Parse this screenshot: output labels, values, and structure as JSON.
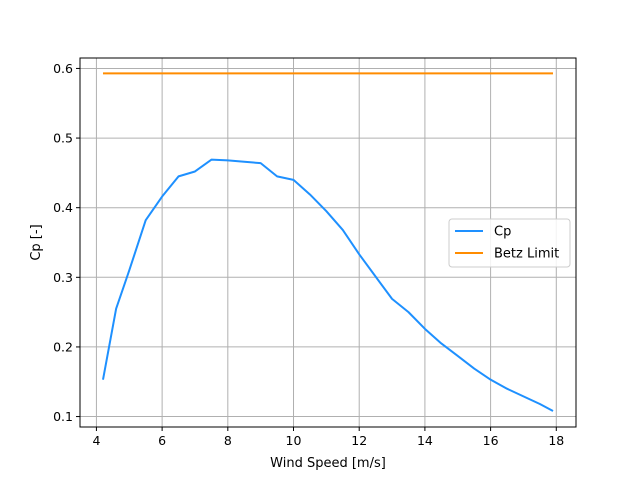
{
  "chart_data": {
    "type": "line",
    "title": "",
    "xlabel": "Wind Speed [m/s]",
    "ylabel": "Cp [-]",
    "xlim": [
      3.5,
      18.6
    ],
    "ylim": [
      0.085,
      0.615
    ],
    "xticks": [
      4,
      6,
      8,
      10,
      12,
      14,
      16,
      18
    ],
    "yticks": [
      0.1,
      0.2,
      0.3,
      0.4,
      0.5,
      0.6
    ],
    "grid": true,
    "legend_position": "center-right",
    "series": [
      {
        "name": "Cp",
        "color": "#1e90ff",
        "x": [
          4.2,
          4.6,
          5.0,
          5.5,
          6.0,
          6.5,
          7.0,
          7.5,
          8.0,
          8.5,
          9.0,
          9.5,
          10.0,
          10.5,
          11.0,
          11.5,
          12.0,
          12.5,
          13.0,
          13.5,
          14.0,
          14.5,
          15.0,
          15.5,
          16.0,
          16.5,
          17.0,
          17.5,
          17.9
        ],
        "y": [
          0.153,
          0.255,
          0.31,
          0.382,
          0.416,
          0.445,
          0.452,
          0.469,
          0.468,
          0.466,
          0.464,
          0.445,
          0.44,
          0.419,
          0.395,
          0.368,
          0.333,
          0.301,
          0.269,
          0.25,
          0.226,
          0.205,
          0.187,
          0.169,
          0.153,
          0.14,
          0.129,
          0.118,
          0.108
        ]
      },
      {
        "name": "Betz Limit",
        "color": "#ff8c00",
        "x": [
          4.2,
          17.9
        ],
        "y": [
          0.593,
          0.593
        ]
      }
    ]
  }
}
